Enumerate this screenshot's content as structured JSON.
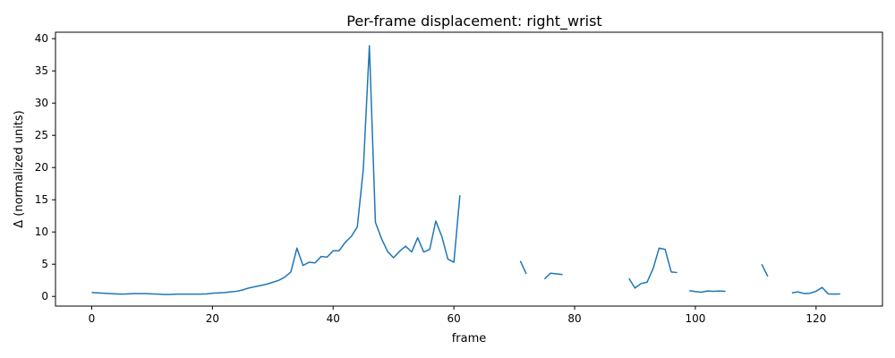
{
  "chart_data": {
    "type": "line",
    "title": "Per-frame displacement: right_wrist",
    "xlabel": "frame",
    "ylabel": "Δ (normalized units)",
    "xlim": [
      -6,
      131
    ],
    "ylim": [
      -1.5,
      41
    ],
    "xticks": [
      0,
      20,
      40,
      60,
      80,
      100,
      120
    ],
    "yticks": [
      0,
      5,
      10,
      15,
      20,
      25,
      30,
      35,
      40
    ],
    "grid": false,
    "line_color": "#1f77b4",
    "series": [
      {
        "x": [
          0,
          1,
          2,
          3,
          4,
          5,
          6,
          7,
          8,
          9,
          10,
          11,
          12,
          13,
          14,
          15,
          16,
          17,
          18,
          19,
          20,
          21,
          22,
          23,
          24,
          25,
          26,
          27,
          28,
          29,
          30,
          31,
          32,
          33,
          34,
          35,
          36,
          37,
          38,
          39,
          40,
          41,
          42,
          43,
          44,
          45,
          46,
          47,
          48,
          49,
          50,
          51,
          52,
          53,
          54,
          55,
          56,
          57,
          58,
          59,
          60,
          61,
          62,
          63,
          64,
          65,
          66,
          67,
          68,
          69,
          70,
          71,
          72,
          73,
          74,
          75,
          76,
          77,
          78,
          79,
          80,
          81,
          82,
          83,
          84,
          85,
          86,
          87,
          88,
          89,
          90,
          91,
          92,
          93,
          94,
          95,
          96,
          97,
          98,
          99,
          100,
          101,
          102,
          103,
          104,
          105,
          106,
          107,
          108,
          109,
          110,
          111,
          112,
          113,
          114,
          115,
          116,
          117,
          118,
          119,
          120,
          121,
          122,
          123,
          124
        ],
        "values": [
          0.6,
          0.55,
          0.5,
          0.45,
          0.4,
          0.35,
          0.4,
          0.45,
          0.45,
          0.45,
          0.4,
          0.35,
          0.3,
          0.3,
          0.35,
          0.35,
          0.35,
          0.35,
          0.35,
          0.4,
          0.5,
          0.55,
          0.6,
          0.7,
          0.8,
          1.0,
          1.3,
          1.5,
          1.7,
          1.9,
          2.2,
          2.5,
          3.0,
          3.8,
          7.5,
          4.8,
          5.3,
          5.2,
          6.2,
          6.1,
          7.1,
          7.1,
          8.4,
          9.3,
          10.8,
          19.8,
          38.9,
          11.5,
          9.0,
          7.0,
          6.0,
          7.0,
          7.8,
          6.9,
          9.1,
          6.9,
          7.3,
          11.7,
          9.3,
          5.8,
          5.3,
          15.7,
          null,
          null,
          null,
          null,
          null,
          null,
          null,
          null,
          null,
          5.5,
          3.5,
          null,
          null,
          2.7,
          3.6,
          3.5,
          3.4,
          null,
          null,
          null,
          null,
          null,
          null,
          null,
          null,
          null,
          null,
          2.8,
          1.3,
          2.0,
          2.2,
          4.3,
          7.5,
          7.3,
          3.8,
          3.7,
          null,
          0.9,
          0.75,
          0.65,
          0.85,
          0.8,
          0.85,
          0.8,
          null,
          null,
          null,
          null,
          null,
          5.0,
          3.1,
          null,
          null,
          null,
          0.55,
          0.7,
          0.45,
          0.5,
          0.8,
          1.4,
          0.4,
          0.35,
          0.4
        ]
      }
    ]
  }
}
